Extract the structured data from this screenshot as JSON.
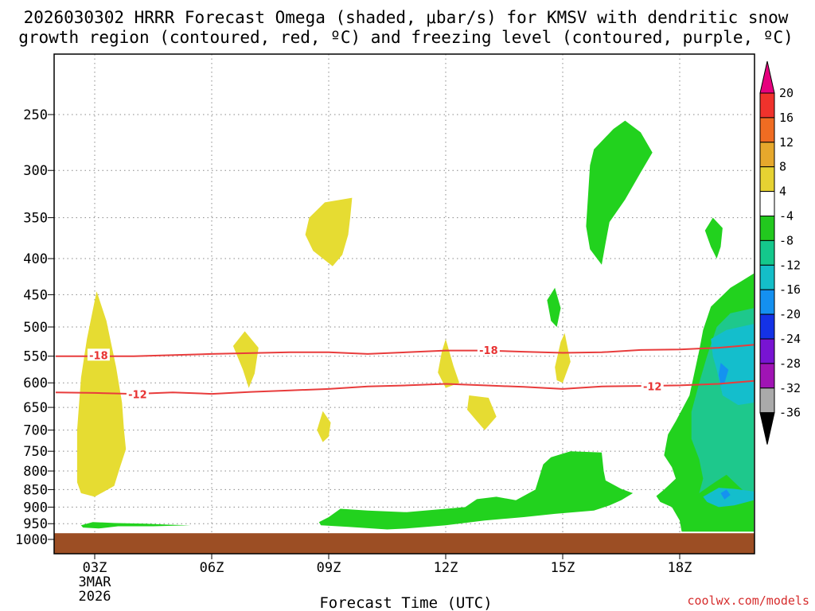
{
  "chart_data": {
    "type": "heatmap",
    "title_lines": [
      "2026030302 HRRR Forecast Omega (shaded, μbar/s) for KMSV with dendritic snow",
      "growth region (contoured, red, ºC) and freezing level (contoured, purple, ºC)"
    ],
    "xlabel": "Forecast Time (UTC)",
    "ylabel": "",
    "x_ticks": [
      {
        "hour": 3,
        "label": "03Z",
        "sub": [
          "3MAR",
          "2026"
        ]
      },
      {
        "hour": 6,
        "label": "06Z"
      },
      {
        "hour": 9,
        "label": "09Z"
      },
      {
        "hour": 12,
        "label": "12Z"
      },
      {
        "hour": 15,
        "label": "15Z"
      },
      {
        "hour": 18,
        "label": "18Z"
      }
    ],
    "x_range": [
      2.0,
      19.9
    ],
    "y_ticks": [
      250,
      300,
      350,
      400,
      450,
      500,
      550,
      600,
      650,
      700,
      750,
      800,
      850,
      900,
      950,
      1000
    ],
    "y_range_hpa": [
      200,
      1022
    ],
    "ground_hpa": 980,
    "credit": "coolwx.com/models",
    "colorbar": {
      "labels": [
        "20",
        "16",
        "12",
        "8",
        "4",
        "-4",
        "-8",
        "-12",
        "-16",
        "-20",
        "-24",
        "-28",
        "-32",
        "-36"
      ],
      "colors": [
        "#e6007e",
        "#f0322c",
        "#f06c22",
        "#e6a82c",
        "#e6d232",
        "#ffffff",
        "#22c81e",
        "#14c88c",
        "#14bec8",
        "#1490f0",
        "#1432e6",
        "#7814d2",
        "#a014b4",
        "#aaaaaa",
        "#000000"
      ]
    },
    "colors": {
      "ground": "#9c4e24",
      "contour_line": "#e83c3c",
      "omega_pos_4_8": "#e6dc32",
      "omega_neg_4_8": "#22d21e",
      "omega_neg_8_12": "#1ec88c",
      "omega_neg_12_16": "#14becc",
      "omega_neg_16_20": "#1492f0"
    },
    "contours": [
      {
        "label": "-18",
        "label_positions": [
          {
            "hour": 3.1,
            "hpa": 548
          },
          {
            "hour": 13.1,
            "hpa": 539
          }
        ],
        "points": [
          [
            2.0,
            550
          ],
          [
            4.0,
            550
          ],
          [
            6.0,
            546
          ],
          [
            8.0,
            543
          ],
          [
            9.0,
            543
          ],
          [
            10.0,
            546
          ],
          [
            11.0,
            543
          ],
          [
            12.0,
            540
          ],
          [
            13.0,
            540
          ],
          [
            14.0,
            542
          ],
          [
            15.0,
            544
          ],
          [
            16.0,
            543
          ],
          [
            17.0,
            539
          ],
          [
            18.0,
            538
          ],
          [
            19.0,
            535
          ],
          [
            19.9,
            530
          ]
        ]
      },
      {
        "label": "-12",
        "label_positions": [
          {
            "hour": 4.1,
            "hpa": 623
          },
          {
            "hour": 17.3,
            "hpa": 607
          }
        ],
        "points": [
          [
            2.0,
            619
          ],
          [
            3.0,
            620
          ],
          [
            4.0,
            622
          ],
          [
            5.0,
            619
          ],
          [
            6.0,
            622
          ],
          [
            7.0,
            618
          ],
          [
            8.0,
            615
          ],
          [
            9.0,
            612
          ],
          [
            10.0,
            607
          ],
          [
            11.0,
            605
          ],
          [
            12.0,
            602
          ],
          [
            13.0,
            605
          ],
          [
            14.0,
            608
          ],
          [
            15.0,
            612
          ],
          [
            16.0,
            607
          ],
          [
            17.0,
            606
          ],
          [
            18.0,
            605
          ],
          [
            19.0,
            602
          ],
          [
            19.9,
            596
          ]
        ]
      }
    ],
    "omega_regions": [
      {
        "level": "pos_4_8",
        "points": [
          [
            2.55,
            830
          ],
          [
            2.55,
            700
          ],
          [
            2.65,
            590
          ],
          [
            2.8,
            520
          ],
          [
            3.05,
            445
          ],
          [
            3.3,
            490
          ],
          [
            3.55,
            570
          ],
          [
            3.7,
            640
          ],
          [
            3.75,
            700
          ],
          [
            3.8,
            745
          ],
          [
            3.65,
            790
          ],
          [
            3.5,
            840
          ],
          [
            3.0,
            870
          ],
          [
            2.65,
            860
          ]
        ]
      },
      {
        "level": "pos_4_8",
        "points": [
          [
            8.4,
            370
          ],
          [
            8.5,
            350
          ],
          [
            8.9,
            333
          ],
          [
            9.6,
            328
          ],
          [
            9.55,
            350
          ],
          [
            9.5,
            370
          ],
          [
            9.35,
            395
          ],
          [
            9.1,
            410
          ],
          [
            8.6,
            390
          ]
        ]
      },
      {
        "level": "pos_4_8",
        "points": [
          [
            6.55,
            532
          ],
          [
            6.85,
            507
          ],
          [
            7.2,
            535
          ],
          [
            7.1,
            582
          ],
          [
            6.95,
            610
          ],
          [
            6.8,
            575
          ]
        ]
      },
      {
        "level": "pos_4_8",
        "points": [
          [
            8.7,
            700
          ],
          [
            8.85,
            658
          ],
          [
            9.05,
            683
          ],
          [
            9.0,
            715
          ],
          [
            8.85,
            728
          ]
        ]
      },
      {
        "level": "pos_4_8",
        "points": [
          [
            11.8,
            580
          ],
          [
            11.9,
            542
          ],
          [
            12.0,
            520
          ],
          [
            12.2,
            568
          ],
          [
            12.35,
            600
          ],
          [
            12.0,
            610
          ]
        ]
      },
      {
        "level": "pos_4_8",
        "points": [
          [
            12.55,
            655
          ],
          [
            12.6,
            625
          ],
          [
            13.1,
            630
          ],
          [
            13.3,
            670
          ],
          [
            13.0,
            700
          ],
          [
            12.8,
            680
          ]
        ]
      },
      {
        "level": "pos_4_8",
        "points": [
          [
            14.8,
            570
          ],
          [
            14.95,
            525
          ],
          [
            15.05,
            510
          ],
          [
            15.2,
            560
          ],
          [
            15.0,
            600
          ],
          [
            14.85,
            595
          ]
        ]
      },
      {
        "level": "neg_4_8",
        "points": [
          [
            14.6,
            458
          ],
          [
            14.8,
            440
          ],
          [
            14.95,
            470
          ],
          [
            14.85,
            500
          ],
          [
            14.7,
            490
          ]
        ]
      },
      {
        "level": "neg_4_8",
        "points": [
          [
            15.6,
            360
          ],
          [
            15.7,
            295
          ],
          [
            15.8,
            280
          ],
          [
            16.3,
            262
          ],
          [
            16.6,
            255
          ],
          [
            17.0,
            265
          ],
          [
            17.3,
            283
          ],
          [
            17.0,
            302
          ],
          [
            16.6,
            330
          ],
          [
            16.2,
            355
          ],
          [
            16.1,
            380
          ],
          [
            16.0,
            408
          ],
          [
            15.7,
            388
          ]
        ]
      },
      {
        "level": "neg_4_8",
        "points": [
          [
            18.65,
            365
          ],
          [
            18.85,
            350
          ],
          [
            19.1,
            362
          ],
          [
            19.05,
            385
          ],
          [
            18.95,
            400
          ],
          [
            18.8,
            385
          ]
        ]
      },
      {
        "level": "neg_4_8",
        "points": [
          [
            8.8,
            955
          ],
          [
            8.75,
            945
          ],
          [
            9.0,
            930
          ],
          [
            9.3,
            905
          ],
          [
            10.0,
            910
          ],
          [
            11.0,
            915
          ],
          [
            12.0,
            905
          ],
          [
            12.5,
            900
          ],
          [
            12.8,
            877
          ],
          [
            13.3,
            870
          ],
          [
            13.8,
            880
          ],
          [
            14.3,
            850
          ],
          [
            14.5,
            783
          ],
          [
            14.7,
            765
          ],
          [
            15.2,
            750
          ],
          [
            16.0,
            753
          ],
          [
            16.05,
            800
          ],
          [
            16.1,
            825
          ],
          [
            16.5,
            848
          ],
          [
            16.8,
            860
          ],
          [
            16.5,
            880
          ],
          [
            16.2,
            895
          ],
          [
            15.8,
            910
          ],
          [
            14.8,
            920
          ],
          [
            14.0,
            930
          ],
          [
            13.0,
            940
          ],
          [
            12.0,
            955
          ],
          [
            11.0,
            965
          ],
          [
            10.5,
            968
          ],
          [
            9.5,
            960
          ]
        ]
      },
      {
        "level": "neg_4_8",
        "points": [
          [
            2.65,
            955
          ],
          [
            2.95,
            945
          ],
          [
            3.5,
            948
          ],
          [
            4.3,
            950
          ],
          [
            4.9,
            953
          ],
          [
            5.45,
            955
          ],
          [
            4.5,
            958
          ],
          [
            3.6,
            958
          ],
          [
            3.1,
            965
          ],
          [
            2.7,
            962
          ]
        ]
      },
      {
        "level": "neg_4_8",
        "points": [
          [
            18.05,
            975
          ],
          [
            18.0,
            940
          ],
          [
            17.8,
            900
          ],
          [
            17.5,
            885
          ],
          [
            17.4,
            868
          ],
          [
            17.6,
            850
          ],
          [
            17.9,
            820
          ],
          [
            17.8,
            790
          ],
          [
            17.6,
            760
          ],
          [
            17.7,
            710
          ],
          [
            17.9,
            680
          ],
          [
            18.25,
            625
          ],
          [
            18.5,
            540
          ],
          [
            18.6,
            505
          ],
          [
            18.8,
            468
          ],
          [
            19.3,
            440
          ],
          [
            19.6,
            430
          ],
          [
            19.9,
            420
          ],
          [
            19.9,
            975
          ]
        ]
      },
      {
        "level": "neg_8_12",
        "points": [
          [
            18.5,
            860
          ],
          [
            18.6,
            820
          ],
          [
            18.5,
            770
          ],
          [
            18.3,
            720
          ],
          [
            18.3,
            660
          ],
          [
            18.5,
            600
          ],
          [
            18.7,
            550
          ],
          [
            18.95,
            500
          ],
          [
            19.3,
            478
          ],
          [
            19.9,
            470
          ],
          [
            19.9,
            880
          ],
          [
            19.5,
            840
          ],
          [
            19.2,
            810
          ],
          [
            18.9,
            830
          ]
        ]
      },
      {
        "level": "neg_12_16",
        "points": [
          [
            18.8,
            520
          ],
          [
            19.2,
            505
          ],
          [
            19.9,
            495
          ],
          [
            19.9,
            640
          ],
          [
            19.5,
            645
          ],
          [
            19.1,
            625
          ],
          [
            18.95,
            575
          ],
          [
            18.85,
            550
          ]
        ]
      },
      {
        "level": "neg_12_16",
        "points": [
          [
            18.6,
            870
          ],
          [
            19.0,
            845
          ],
          [
            19.4,
            848
          ],
          [
            19.9,
            855
          ],
          [
            19.9,
            880
          ],
          [
            19.4,
            895
          ],
          [
            19.0,
            900
          ],
          [
            18.7,
            885
          ]
        ]
      },
      {
        "level": "neg_16_20",
        "points": [
          [
            19.0,
            585
          ],
          [
            19.05,
            562
          ],
          [
            19.25,
            575
          ],
          [
            19.15,
            600
          ],
          [
            19.05,
            605
          ]
        ]
      },
      {
        "level": "neg_16_20",
        "points": [
          [
            19.05,
            860
          ],
          [
            19.2,
            850
          ],
          [
            19.3,
            865
          ],
          [
            19.15,
            878
          ]
        ]
      }
    ]
  }
}
